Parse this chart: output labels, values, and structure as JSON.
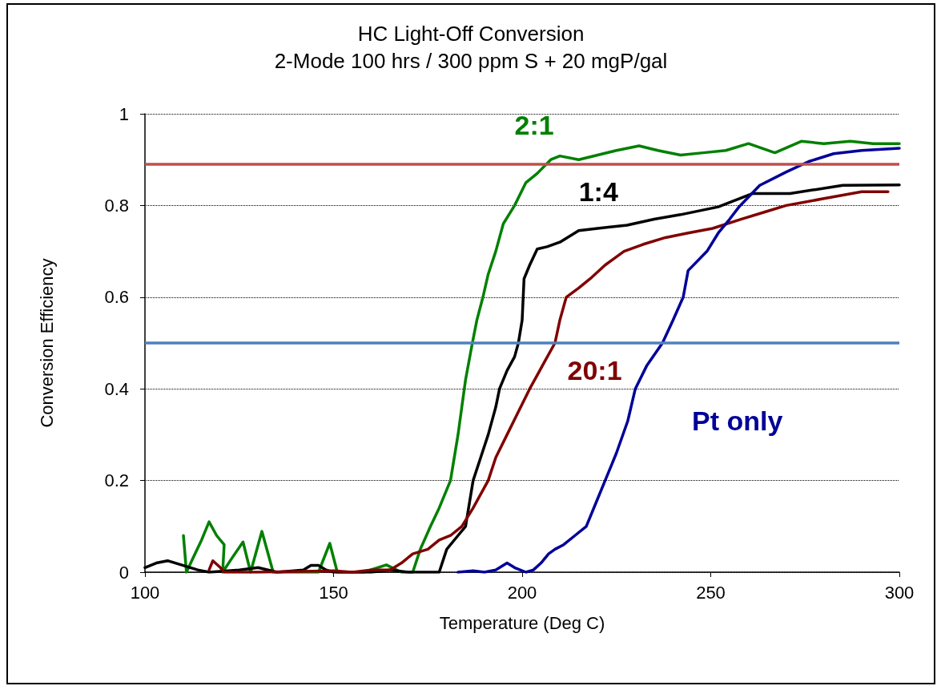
{
  "chart_data": {
    "type": "line",
    "title": "HC Light-Off Conversion",
    "subtitle": "2-Mode 100 hrs / 300 ppm S + 20 mgP/gal",
    "xlabel": "Temperature (Deg C)",
    "ylabel": "Conversion Efficiency",
    "xlim": [
      100,
      300
    ],
    "xticks": [
      100,
      150,
      200,
      250,
      300
    ],
    "ylim": [
      0,
      1
    ],
    "yticks": [
      0,
      0.2,
      0.4,
      0.6,
      0.8,
      1
    ],
    "grid": "y",
    "legend": false,
    "marker": "none",
    "line_style": "solid",
    "ref_lines": [
      {
        "axis": "y",
        "value": 0.89,
        "color": "#c0504d"
      },
      {
        "axis": "y",
        "value": 0.5,
        "color": "#4f81bd"
      }
    ],
    "series": [
      {
        "name": "2:1",
        "color": "#008000",
        "x": [
          110.2,
          111,
          112.7,
          115,
          117,
          119,
          121,
          120.6,
          123,
          126,
          128,
          131,
          134,
          138,
          146,
          149,
          151,
          158,
          164,
          168,
          171,
          173,
          175.7,
          178,
          181,
          183,
          185,
          186.8,
          188,
          189.6,
          191,
          193,
          195,
          198,
          201,
          204,
          207.6,
          210,
          215,
          220,
          225,
          231,
          236,
          242,
          248,
          254,
          260,
          267,
          274,
          280,
          287,
          293,
          300
        ],
        "values": [
          0.08,
          0,
          0.03,
          0.07,
          0.11,
          0.08,
          0.06,
          0,
          0.03,
          0.066,
          0,
          0.089,
          0,
          0,
          0,
          0.063,
          0,
          0,
          0.016,
          0,
          0,
          0.05,
          0.1,
          0.14,
          0.2,
          0.3,
          0.42,
          0.5,
          0.55,
          0.6,
          0.65,
          0.7,
          0.76,
          0.8,
          0.85,
          0.87,
          0.9,
          0.908,
          0.9,
          0.91,
          0.92,
          0.93,
          0.92,
          0.91,
          0.915,
          0.92,
          0.935,
          0.915,
          0.94,
          0.935,
          0.94,
          0.935,
          0.935
        ]
      },
      {
        "name": "1:4",
        "color": "#000000",
        "x": [
          100,
          103,
          106,
          110,
          114,
          117,
          125,
          130,
          135,
          142,
          144,
          146,
          148,
          150,
          160,
          165,
          170,
          178,
          180,
          183,
          185,
          187,
          189,
          191,
          193,
          194,
          196,
          198,
          199,
          200,
          200.5,
          202,
          204,
          206.6,
          210,
          215,
          220,
          227.8,
          235,
          242,
          252,
          261,
          271,
          285,
          300
        ],
        "values": [
          0.01,
          0.02,
          0.025,
          0.015,
          0.005,
          0,
          0.005,
          0.01,
          0,
          0.005,
          0.015,
          0.015,
          0.005,
          0,
          0,
          0.005,
          0,
          0,
          0.05,
          0.08,
          0.1,
          0.2,
          0.25,
          0.3,
          0.36,
          0.4,
          0.44,
          0.47,
          0.5,
          0.55,
          0.64,
          0.67,
          0.705,
          0.71,
          0.72,
          0.745,
          0.75,
          0.757,
          0.77,
          0.78,
          0.797,
          0.826,
          0.826,
          0.844,
          0.845
        ]
      },
      {
        "name": "20:1",
        "color": "#800000",
        "x": [
          117,
          118,
          120,
          121,
          130,
          150,
          155,
          160,
          165,
          168,
          171,
          175,
          178,
          181,
          184,
          187,
          191,
          193,
          196,
          199,
          202,
          204,
          206,
          208.7,
          210,
          211.7,
          215,
          218,
          222,
          227,
          232,
          238,
          244,
          250.5,
          258,
          264,
          270,
          280,
          290,
          297
        ],
        "values": [
          0.005,
          0.025,
          0.01,
          0,
          0,
          0.003,
          0,
          0.005,
          0.005,
          0.02,
          0.04,
          0.05,
          0.07,
          0.08,
          0.1,
          0.14,
          0.2,
          0.25,
          0.3,
          0.35,
          0.4,
          0.43,
          0.46,
          0.5,
          0.55,
          0.6,
          0.62,
          0.64,
          0.67,
          0.7,
          0.715,
          0.73,
          0.74,
          0.75,
          0.77,
          0.785,
          0.8,
          0.815,
          0.83,
          0.83
        ]
      },
      {
        "name": "Pt only",
        "color": "#000099",
        "x": [
          183,
          187,
          190,
          193,
          196,
          198,
          201,
          203,
          205,
          207,
          208.7,
          211,
          214,
          217,
          220,
          222,
          225,
          228,
          230,
          233,
          237.2,
          240,
          242.7,
          244,
          249,
          252,
          255,
          257.5,
          263,
          270,
          276,
          282.6,
          290,
          300
        ],
        "values": [
          0,
          0.003,
          0,
          0.005,
          0.02,
          0.01,
          0,
          0.005,
          0.02,
          0.04,
          0.05,
          0.06,
          0.08,
          0.1,
          0.16,
          0.2,
          0.26,
          0.33,
          0.4,
          0.45,
          0.5,
          0.55,
          0.6,
          0.658,
          0.7,
          0.74,
          0.77,
          0.797,
          0.844,
          0.873,
          0.896,
          0.913,
          0.92,
          0.925
        ]
      }
    ]
  }
}
